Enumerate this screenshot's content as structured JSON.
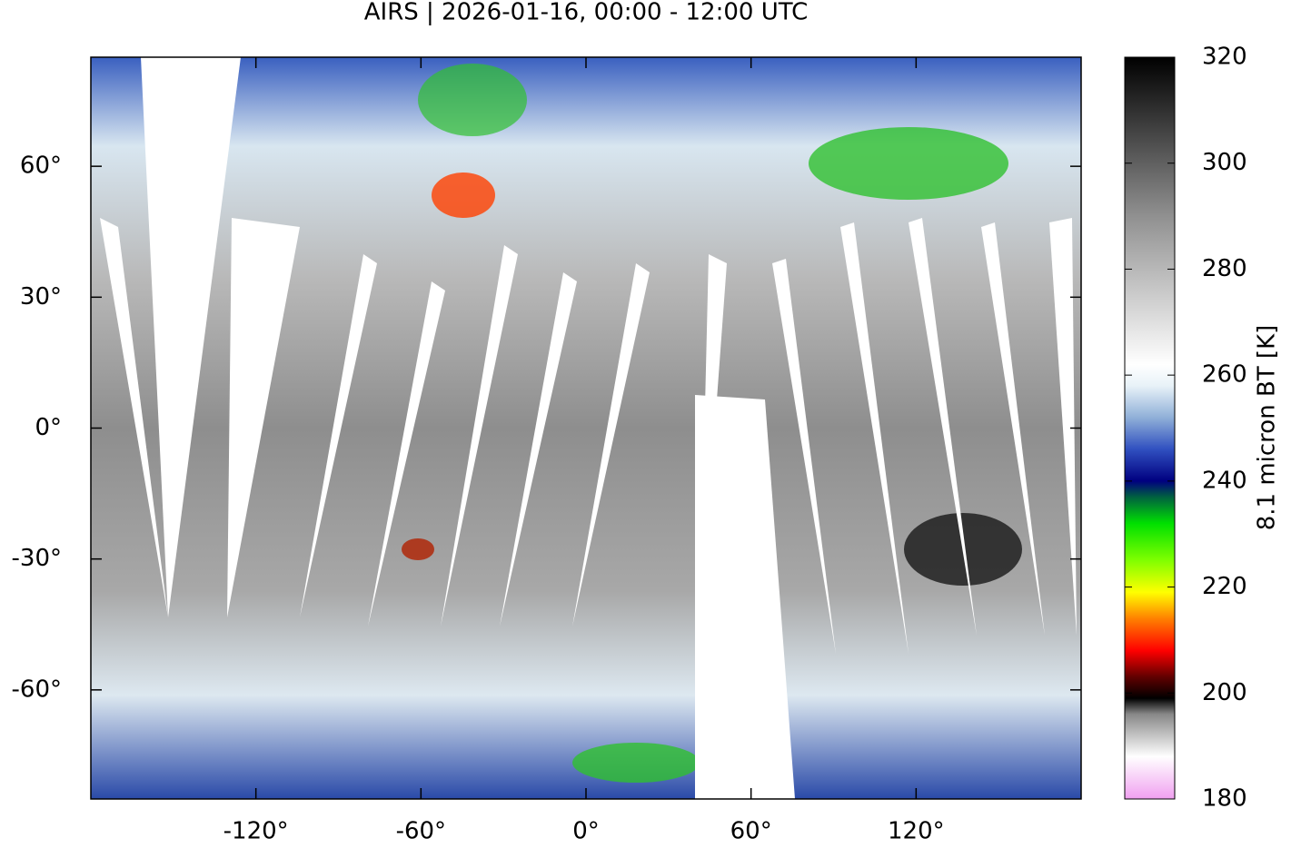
{
  "title": "AIRS | 2026-01-16, 00:00 - 12:00 UTC",
  "map": {
    "xlim": [
      -180,
      180
    ],
    "ylim": [
      -85,
      85
    ],
    "xticks": [
      {
        "value": -120,
        "label": "-120°"
      },
      {
        "value": -60,
        "label": "-60°"
      },
      {
        "value": 0,
        "label": "0°"
      },
      {
        "value": 60,
        "label": "60°"
      },
      {
        "value": 120,
        "label": "120°"
      }
    ],
    "yticks": [
      {
        "value": 60,
        "label": "60°"
      },
      {
        "value": 30,
        "label": "30°"
      },
      {
        "value": 0,
        "label": "0°"
      },
      {
        "value": -30,
        "label": "-30°"
      },
      {
        "value": -60,
        "label": "-60°"
      }
    ]
  },
  "colorbar": {
    "label": "8.1 micron BT [K]",
    "lim": [
      180,
      320
    ],
    "ticks": [
      180,
      200,
      220,
      240,
      260,
      280,
      300,
      320
    ],
    "colormap": [
      {
        "value": 180,
        "color": "#f0a0f0"
      },
      {
        "value": 188,
        "color": "#ffffff"
      },
      {
        "value": 196,
        "color": "#888888"
      },
      {
        "value": 199,
        "color": "#000000"
      },
      {
        "value": 203,
        "color": "#600000"
      },
      {
        "value": 208,
        "color": "#ff0000"
      },
      {
        "value": 214,
        "color": "#ff8000"
      },
      {
        "value": 219,
        "color": "#ffff00"
      },
      {
        "value": 225,
        "color": "#80ff00"
      },
      {
        "value": 232,
        "color": "#00e000"
      },
      {
        "value": 237,
        "color": "#006040"
      },
      {
        "value": 240,
        "color": "#000080"
      },
      {
        "value": 246,
        "color": "#3050c0"
      },
      {
        "value": 252,
        "color": "#90b0d8"
      },
      {
        "value": 258,
        "color": "#e8f2f8"
      },
      {
        "value": 262,
        "color": "#ffffff"
      },
      {
        "value": 290,
        "color": "#909090"
      },
      {
        "value": 320,
        "color": "#000000"
      }
    ]
  }
}
